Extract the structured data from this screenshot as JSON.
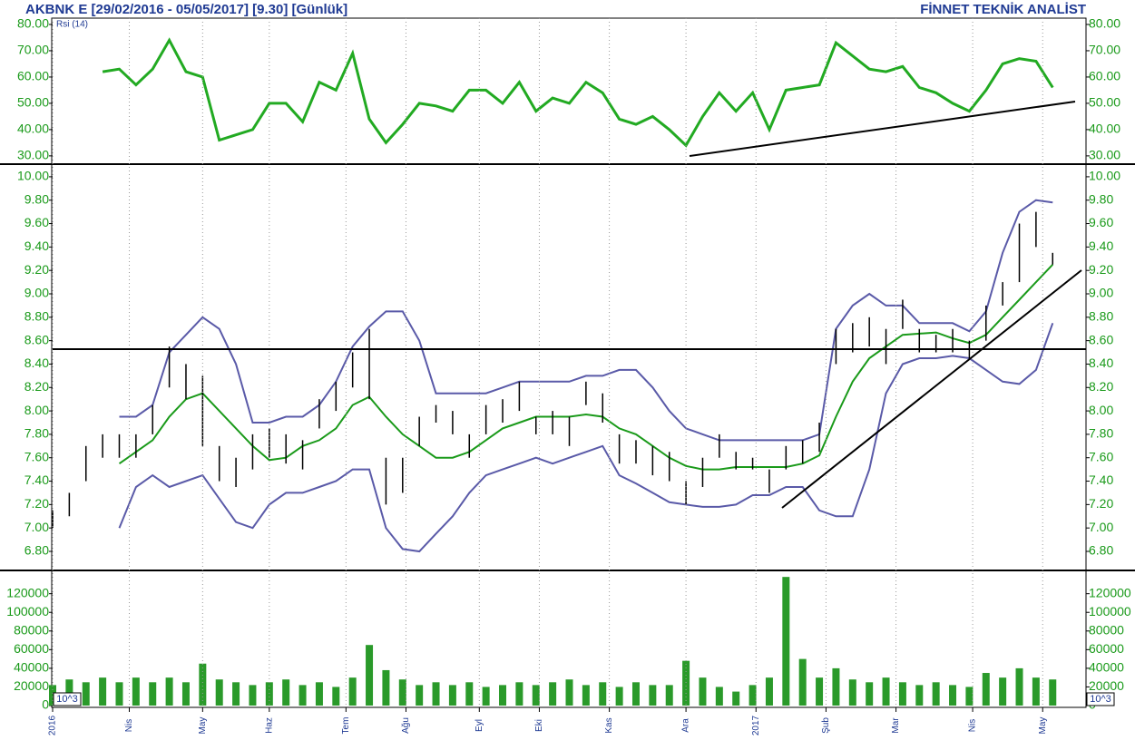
{
  "header": {
    "title": "AKBNK E  [29/02/2016 - 05/05/2017]  [9.30]  [Günlük]",
    "brand": "FİNNET TEKNİK ANALİST"
  },
  "chart_data": [
    {
      "type": "line",
      "title": "Rsi (14)",
      "color": "#22aa22",
      "xlim": [
        0,
        310
      ],
      "ylim": [
        27.2,
        82.4
      ],
      "yticks": [
        {
          "value": 30,
          "label": "30.00"
        },
        {
          "value": 40,
          "label": "40.00"
        },
        {
          "value": 50,
          "label": "50.00"
        },
        {
          "value": 60,
          "label": "60.00"
        },
        {
          "value": 70,
          "label": "70.00"
        },
        {
          "value": 80,
          "label": "80.00"
        }
      ],
      "x": [
        0,
        5,
        10,
        15,
        20,
        25,
        30,
        35,
        40,
        45,
        50,
        55,
        60,
        65,
        70,
        75,
        80,
        85,
        90,
        95,
        100,
        105,
        110,
        115,
        120,
        125,
        130,
        135,
        140,
        145,
        150,
        155,
        160,
        165,
        170,
        175,
        180,
        185,
        190,
        195,
        200,
        205,
        210,
        215,
        220,
        225,
        230,
        235,
        240,
        245,
        250,
        255,
        260,
        265,
        270,
        275,
        280,
        285,
        290,
        295,
        300
      ],
      "values": [
        null,
        null,
        null,
        62,
        63,
        57,
        63,
        74,
        62,
        60,
        36,
        38,
        40,
        50,
        50,
        43,
        58,
        55,
        69,
        44,
        35,
        42,
        50,
        49,
        47,
        55,
        55,
        50,
        58,
        47,
        52,
        50,
        58,
        54,
        44,
        42,
        45,
        40,
        34,
        45,
        54,
        47,
        54,
        40,
        55,
        56,
        57,
        73,
        68,
        63,
        62,
        64,
        56,
        54,
        50,
        47,
        55,
        65,
        67,
        66,
        56
      ]
    },
    {
      "type": "price",
      "color": "#000000",
      "band_color": "#5a5aa8",
      "mid_color": "#1a9a1a",
      "xlim": [
        0,
        310
      ],
      "ylim": [
        6.645,
        10.1
      ],
      "yticks": [
        {
          "value": 6.8,
          "label": "6.80"
        },
        {
          "value": 7,
          "label": "7.00"
        },
        {
          "value": 7.2,
          "label": "7.20"
        },
        {
          "value": 7.4,
          "label": "7.40"
        },
        {
          "value": 7.6,
          "label": "7.60"
        },
        {
          "value": 7.8,
          "label": "7.80"
        },
        {
          "value": 8,
          "label": "8.00"
        },
        {
          "value": 8.2,
          "label": "8.20"
        },
        {
          "value": 8.4,
          "label": "8.40"
        },
        {
          "value": 8.6,
          "label": "8.60"
        },
        {
          "value": 8.8,
          "label": "8.80"
        },
        {
          "value": 9,
          "label": "9.00"
        },
        {
          "value": 9.2,
          "label": "9.20"
        },
        {
          "value": 9.4,
          "label": "9.40"
        },
        {
          "value": 9.6,
          "label": "9.60"
        },
        {
          "value": 9.8,
          "label": "9.80"
        },
        {
          "value": 10,
          "label": "10.00"
        }
      ],
      "x": [
        0,
        5,
        10,
        15,
        20,
        25,
        30,
        35,
        40,
        45,
        50,
        55,
        60,
        65,
        70,
        75,
        80,
        85,
        90,
        95,
        100,
        105,
        110,
        115,
        120,
        125,
        130,
        135,
        140,
        145,
        150,
        155,
        160,
        165,
        170,
        175,
        180,
        185,
        190,
        195,
        200,
        205,
        210,
        215,
        220,
        225,
        230,
        235,
        240,
        245,
        250,
        255,
        260,
        265,
        270,
        275,
        280,
        285,
        290,
        295,
        300
      ],
      "high": [
        7.15,
        7.3,
        7.7,
        7.8,
        7.8,
        7.8,
        8.05,
        8.55,
        8.4,
        8.3,
        7.7,
        7.6,
        7.8,
        7.85,
        7.8,
        7.75,
        8.1,
        8.25,
        8.5,
        8.7,
        7.6,
        7.6,
        7.95,
        8.05,
        8.0,
        7.8,
        8.05,
        8.1,
        8.25,
        7.95,
        8.0,
        7.95,
        8.25,
        8.15,
        7.8,
        7.75,
        7.7,
        7.65,
        7.4,
        7.6,
        7.8,
        7.65,
        7.6,
        7.5,
        7.7,
        7.75,
        7.9,
        8.7,
        8.75,
        8.8,
        8.7,
        8.95,
        8.7,
        8.65,
        8.7,
        8.6,
        8.9,
        9.1,
        9.6,
        9.7,
        9.35
      ],
      "low": [
        7.0,
        7.1,
        7.4,
        7.6,
        7.6,
        7.6,
        7.8,
        8.2,
        8.1,
        7.7,
        7.4,
        7.35,
        7.5,
        7.6,
        7.55,
        7.5,
        7.85,
        8.0,
        8.2,
        8.1,
        7.2,
        7.3,
        7.7,
        7.9,
        7.8,
        7.6,
        7.8,
        7.9,
        8.0,
        7.8,
        7.8,
        7.7,
        8.05,
        7.9,
        7.55,
        7.55,
        7.45,
        7.4,
        7.2,
        7.35,
        7.6,
        7.5,
        7.5,
        7.3,
        7.5,
        7.55,
        7.65,
        8.4,
        8.5,
        8.55,
        8.4,
        8.7,
        8.5,
        8.5,
        8.5,
        8.45,
        8.6,
        8.9,
        9.1,
        9.4,
        9.25
      ],
      "upper": [
        null,
        null,
        null,
        null,
        7.95,
        7.95,
        8.05,
        8.5,
        8.65,
        8.8,
        8.7,
        8.4,
        7.9,
        7.9,
        7.95,
        7.95,
        8.05,
        8.25,
        8.55,
        8.72,
        8.85,
        8.85,
        8.6,
        8.15,
        8.15,
        8.15,
        8.15,
        8.2,
        8.25,
        8.25,
        8.25,
        8.25,
        8.3,
        8.3,
        8.35,
        8.35,
        8.2,
        8.0,
        7.85,
        7.8,
        7.75,
        7.75,
        7.75,
        7.75,
        7.75,
        7.75,
        7.8,
        8.7,
        8.9,
        9.0,
        8.9,
        8.9,
        8.75,
        8.75,
        8.75,
        8.68,
        8.85,
        9.35,
        9.7,
        9.8,
        9.78
      ],
      "middle": [
        null,
        null,
        null,
        null,
        7.55,
        7.65,
        7.75,
        7.95,
        8.1,
        8.15,
        8.0,
        7.85,
        7.7,
        7.58,
        7.6,
        7.7,
        7.75,
        7.85,
        8.05,
        8.12,
        7.95,
        7.8,
        7.7,
        7.6,
        7.6,
        7.65,
        7.75,
        7.85,
        7.9,
        7.95,
        7.95,
        7.95,
        7.97,
        7.95,
        7.85,
        7.8,
        7.7,
        7.6,
        7.53,
        7.5,
        7.5,
        7.52,
        7.52,
        7.52,
        7.52,
        7.55,
        7.62,
        7.95,
        8.25,
        8.45,
        8.55,
        8.65,
        8.66,
        8.67,
        8.62,
        8.58,
        8.65,
        8.8,
        8.95,
        9.1,
        9.25
      ],
      "lower": [
        null,
        null,
        null,
        null,
        7.0,
        7.35,
        7.45,
        7.35,
        7.4,
        7.45,
        7.25,
        7.05,
        7.0,
        7.2,
        7.3,
        7.3,
        7.35,
        7.4,
        7.5,
        7.5,
        7.0,
        6.82,
        6.8,
        6.95,
        7.1,
        7.3,
        7.45,
        7.5,
        7.55,
        7.6,
        7.55,
        7.6,
        7.65,
        7.7,
        7.45,
        7.38,
        7.3,
        7.22,
        7.2,
        7.18,
        7.18,
        7.2,
        7.28,
        7.28,
        7.35,
        7.35,
        7.15,
        7.1,
        7.1,
        7.5,
        8.15,
        8.4,
        8.45,
        8.45,
        8.47,
        8.45,
        8.35,
        8.25,
        8.23,
        8.35,
        8.75
      ]
    },
    {
      "type": "bar",
      "color": "#2a9a2a",
      "unit_label": "10^3",
      "xlim": [
        0,
        310
      ],
      "ylim": [
        0,
        144000
      ],
      "grid": true,
      "yticks": [
        0,
        20000,
        40000,
        60000,
        80000,
        100000,
        120000
      ],
      "xticks": [
        {
          "value": 0,
          "label": "2016"
        },
        {
          "value": 23,
          "label": "Nis"
        },
        {
          "value": 45,
          "label": "May"
        },
        {
          "value": 65,
          "label": "Haz"
        },
        {
          "value": 88,
          "label": "Tem"
        },
        {
          "value": 106,
          "label": "Ağu"
        },
        {
          "value": 128,
          "label": "Eyl"
        },
        {
          "value": 146,
          "label": "Eki"
        },
        {
          "value": 167,
          "label": "Kas"
        },
        {
          "value": 190,
          "label": "Ara"
        },
        {
          "value": 211,
          "label": "2017"
        },
        {
          "value": 232,
          "label": "Şub"
        },
        {
          "value": 253,
          "label": "Mar"
        },
        {
          "value": 276,
          "label": "Nis"
        },
        {
          "value": 297,
          "label": "May"
        }
      ],
      "x": [
        0,
        5,
        10,
        15,
        20,
        25,
        30,
        35,
        40,
        45,
        50,
        55,
        60,
        65,
        70,
        75,
        80,
        85,
        90,
        95,
        100,
        105,
        110,
        115,
        120,
        125,
        130,
        135,
        140,
        145,
        150,
        155,
        160,
        165,
        170,
        175,
        180,
        185,
        190,
        195,
        200,
        205,
        210,
        215,
        220,
        225,
        230,
        235,
        240,
        245,
        250,
        255,
        260,
        265,
        270,
        275,
        280,
        285,
        290,
        295,
        300
      ],
      "values": [
        22000,
        28000,
        25000,
        30000,
        25000,
        30000,
        25000,
        30000,
        25000,
        45000,
        28000,
        25000,
        22000,
        25000,
        28000,
        22000,
        25000,
        20000,
        30000,
        65000,
        38000,
        28000,
        22000,
        25000,
        22000,
        25000,
        20000,
        22000,
        25000,
        22000,
        25000,
        28000,
        22000,
        25000,
        20000,
        25000,
        22000,
        22000,
        48000,
        30000,
        20000,
        15000,
        22000,
        30000,
        138000,
        50000,
        30000,
        40000,
        28000,
        25000,
        30000,
        25000,
        22000,
        25000,
        22000,
        20000,
        35000,
        30000,
        40000,
        30000,
        28000
      ]
    }
  ]
}
